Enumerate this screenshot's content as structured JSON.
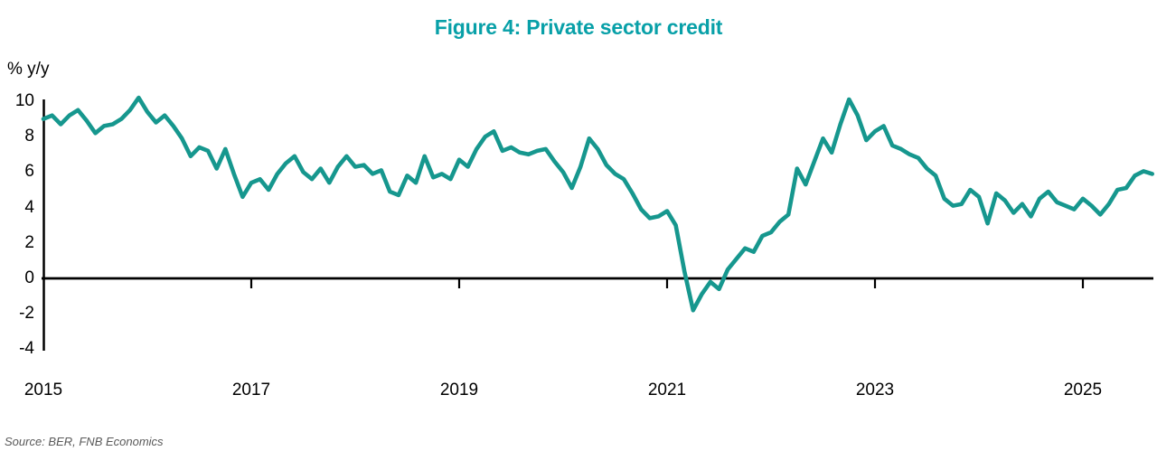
{
  "title": "Figure 4: Private sector credit",
  "y_axis_unit": "% y/y",
  "source_note": "Source: BER, FNB Economics",
  "colors": {
    "title": "#08A0A8",
    "line": "#16978E",
    "axis": "#000000",
    "tick_text": "#000000",
    "source_text": "#595959",
    "background": "#FFFFFF"
  },
  "chart_data": {
    "type": "line",
    "title": "Figure 4: Private sector credit",
    "ylabel": "% y/y",
    "xlabel": "",
    "x_start": "2015-01",
    "x_step_months": 1,
    "x_ticks": [
      2015,
      2017,
      2019,
      2021,
      2023,
      2025
    ],
    "y_ticks": [
      10,
      8,
      6,
      4,
      2,
      0,
      -2,
      -4
    ],
    "ylim": [
      -4,
      10
    ],
    "xlim_years": [
      2015.0,
      2025.75
    ],
    "grid": false,
    "legend_position": "none",
    "zero_baseline": true,
    "series": [
      {
        "name": "Private sector credit extension, % y/y",
        "color": "#16978E",
        "values": [
          9.0,
          9.2,
          8.7,
          9.2,
          9.5,
          8.9,
          8.2,
          8.6,
          8.7,
          9.0,
          9.5,
          10.2,
          9.4,
          8.8,
          9.2,
          8.6,
          7.9,
          6.9,
          7.4,
          7.2,
          6.2,
          7.3,
          5.9,
          4.6,
          5.4,
          5.6,
          5.0,
          5.9,
          6.5,
          6.9,
          6.0,
          5.6,
          6.2,
          5.4,
          6.3,
          6.9,
          6.3,
          6.4,
          5.9,
          6.1,
          4.9,
          4.7,
          5.8,
          5.4,
          6.9,
          5.7,
          5.9,
          5.6,
          6.7,
          6.3,
          7.3,
          8.0,
          8.3,
          7.2,
          7.4,
          7.1,
          7.0,
          7.2,
          7.3,
          6.6,
          6.0,
          5.1,
          6.3,
          7.9,
          7.3,
          6.4,
          5.9,
          5.6,
          4.8,
          3.9,
          3.4,
          3.5,
          3.8,
          3.0,
          0.4,
          -1.8,
          -0.9,
          -0.2,
          -0.6,
          0.5,
          1.1,
          1.7,
          1.5,
          2.4,
          2.6,
          3.2,
          3.6,
          6.2,
          5.3,
          6.6,
          7.9,
          7.1,
          8.7,
          10.1,
          9.2,
          7.8,
          8.3,
          8.6,
          7.5,
          7.3,
          7.0,
          6.8,
          6.2,
          5.8,
          4.5,
          4.1,
          4.2,
          5.0,
          4.6,
          3.1,
          4.8,
          4.4,
          3.7,
          4.2,
          3.5,
          4.5,
          4.9,
          4.3,
          4.1,
          3.9,
          4.5,
          4.1,
          3.6,
          4.2,
          5.0,
          5.1,
          5.8,
          6.05,
          5.9
        ]
      }
    ]
  }
}
